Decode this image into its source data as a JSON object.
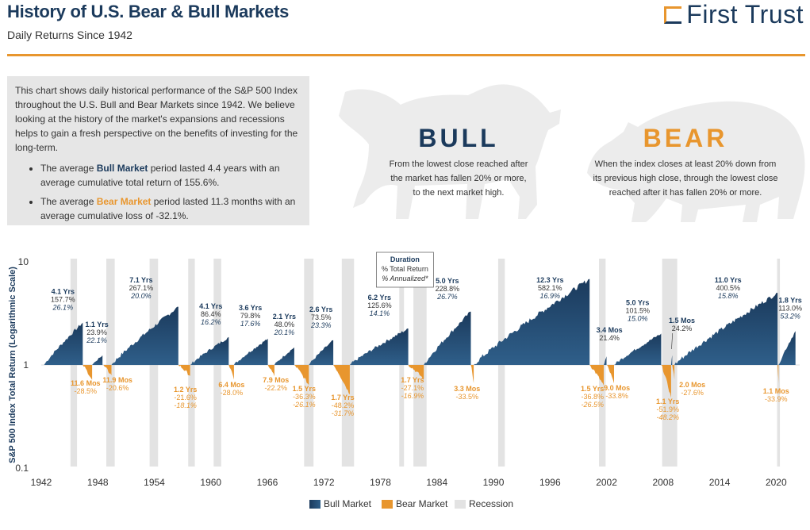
{
  "header": {
    "title": "History of U.S. Bear & Bull Markets",
    "subtitle": "Daily Returns Since 1942",
    "logo_text": "First Trust"
  },
  "intro": {
    "paragraph": "This chart shows daily historical performance of the S&P 500 Index throughout the U.S. Bull and Bear Markets since 1942. We believe looking at the history of the market's expansions and recessions helps to gain a fresh perspective on the benefits of investing for the long-term.",
    "bullets": [
      {
        "pre": "The average ",
        "term": "Bull Market",
        "post": " period lasted 4.4 years with an average cumulative total return of 155.6%."
      },
      {
        "pre": "The average ",
        "term": "Bear Market",
        "post": " period lasted 11.3 months with an average cumulative loss of -32.1%."
      }
    ]
  },
  "definitions": {
    "bull": {
      "title": "BULL",
      "text": [
        "From the lowest close reached after",
        "the market has fallen 20% or more,",
        "to the next market high."
      ]
    },
    "bear": {
      "title": "BEAR",
      "text": [
        "When the index closes at least 20% down from",
        "its previous high close, through the lowest close",
        "reached after it has fallen 20% or more."
      ]
    }
  },
  "colors": {
    "bull": "#1b3a5c",
    "bear": "#e8962e",
    "recession": "#e3e3e3"
  },
  "chart_data": {
    "type": "area",
    "ylabel": "S&P 500 Index Total Return (Logarithmic Scale)",
    "yscale": "log",
    "ylim": [
      0.1,
      10
    ],
    "yticks": [
      "10",
      "1",
      "0.1"
    ],
    "xlim": [
      1942,
      2022.5
    ],
    "xticks": [
      "1942",
      "1948",
      "1954",
      "1960",
      "1966",
      "1972",
      "1978",
      "1984",
      "1990",
      "1996",
      "2002",
      "2008",
      "2014",
      "2020"
    ],
    "duration_key": {
      "title": "Duration",
      "line1": "% Total Return",
      "line2": "% Annualized*"
    },
    "recessions": [
      [
        1945.1,
        1945.8
      ],
      [
        1948.9,
        1949.8
      ],
      [
        1953.5,
        1954.4
      ],
      [
        1957.6,
        1958.3
      ],
      [
        1960.3,
        1961.1
      ],
      [
        1969.9,
        1970.9
      ],
      [
        1973.9,
        1975.2
      ],
      [
        1980.0,
        1980.5
      ],
      [
        1981.5,
        1982.9
      ],
      [
        1990.5,
        1991.2
      ],
      [
        2001.2,
        2001.9
      ],
      [
        2007.9,
        2009.5
      ],
      [
        2020.1,
        2020.4
      ]
    ],
    "bull_markets": [
      {
        "start": 1942.3,
        "end": 1946.4,
        "peak": 2.577,
        "duration": "4.1 Yrs",
        "total": "157.7%",
        "annualized": "26.1%"
      },
      {
        "start": 1947.4,
        "end": 1948.5,
        "peak": 1.239,
        "duration": "1.1 Yrs",
        "total": "23.9%",
        "annualized": "22.1%"
      },
      {
        "start": 1949.45,
        "end": 1956.55,
        "peak": 3.671,
        "duration": "7.1 Yrs",
        "total": "267.1%",
        "annualized": "20.0%"
      },
      {
        "start": 1957.8,
        "end": 1961.9,
        "peak": 1.864,
        "duration": "4.1 Yrs",
        "total": "86.4%",
        "annualized": "16.2%"
      },
      {
        "start": 1962.45,
        "end": 1966.05,
        "peak": 1.798,
        "duration": "3.6 Yrs",
        "total": "79.8%",
        "annualized": "17.6%"
      },
      {
        "start": 1966.75,
        "end": 1968.85,
        "peak": 1.48,
        "duration": "2.1 Yrs",
        "total": "48.0%",
        "annualized": "20.1%"
      },
      {
        "start": 1970.4,
        "end": 1973.0,
        "peak": 1.735,
        "duration": "2.6 Yrs",
        "total": "73.5%",
        "annualized": "23.3%"
      },
      {
        "start": 1974.75,
        "end": 1980.95,
        "peak": 2.256,
        "duration": "6.2 Yrs",
        "total": "125.6%",
        "annualized": "14.1%"
      },
      {
        "start": 1982.6,
        "end": 1987.6,
        "peak": 3.288,
        "duration": "5.0 Yrs",
        "total": "228.8%",
        "annualized": "26.7%"
      },
      {
        "start": 1987.9,
        "end": 2000.2,
        "peak": 6.821,
        "duration": "12.3 Yrs",
        "total": "582.1%",
        "annualized": "16.9%"
      },
      {
        "start": 2001.7,
        "end": 2002.0,
        "peak": 1.214,
        "duration": "3.4 Mos",
        "total": "21.4%",
        "annualized": ""
      },
      {
        "start": 2002.8,
        "end": 2007.8,
        "peak": 2.015,
        "duration": "5.0 Yrs",
        "total": "101.5%",
        "annualized": "15.0%"
      },
      {
        "start": 2009.2,
        "end": 2020.15,
        "peak": 5.005,
        "duration": "11.0 Yrs",
        "total": "400.5%",
        "annualized": "15.8%"
      },
      {
        "start": 2020.25,
        "end": 2022.05,
        "peak": 2.13,
        "duration": "1.8 Yrs",
        "total": "113.0%",
        "annualized": "53.2%"
      }
    ],
    "short_bulls": [
      {
        "start": 2008.85,
        "end": 2008.97,
        "peak": 1.242,
        "duration": "1.5 Mos",
        "total": "24.2%",
        "annualized": ""
      }
    ],
    "bear_markets": [
      {
        "start": 1946.4,
        "end": 1947.4,
        "trough": 0.715,
        "duration": "11.6 Mos",
        "total": "-28.5%",
        "annualized": ""
      },
      {
        "start": 1948.5,
        "end": 1949.45,
        "trough": 0.794,
        "duration": "11.9 Mos",
        "total": "-20.6%",
        "annualized": ""
      },
      {
        "start": 1956.55,
        "end": 1957.8,
        "trough": 0.784,
        "duration": "1.2 Yrs",
        "total": "-21.6%",
        "annualized": "-18.1%"
      },
      {
        "start": 1961.9,
        "end": 1962.45,
        "trough": 0.72,
        "duration": "6.4 Mos",
        "total": "-28.0%",
        "annualized": ""
      },
      {
        "start": 1966.05,
        "end": 1966.75,
        "trough": 0.778,
        "duration": "7.9 Mos",
        "total": "-22.2%",
        "annualized": ""
      },
      {
        "start": 1968.85,
        "end": 1970.4,
        "trough": 0.637,
        "duration": "1.5 Yrs",
        "total": "-36.3%",
        "annualized": "-26.1%"
      },
      {
        "start": 1973.0,
        "end": 1974.75,
        "trough": 0.518,
        "duration": "1.7 Yrs",
        "total": "-48.2%",
        "annualized": "-31.7%"
      },
      {
        "start": 1980.95,
        "end": 1982.6,
        "trough": 0.729,
        "duration": "1.7 Yrs",
        "total": "-27.1%",
        "annualized": "-16.9%"
      },
      {
        "start": 1987.6,
        "end": 1987.9,
        "trough": 0.665,
        "duration": "3.3 Mos",
        "total": "-33.5%",
        "annualized": ""
      },
      {
        "start": 2000.2,
        "end": 2001.7,
        "trough": 0.632,
        "duration": "1.5 Yrs",
        "total": "-36.8%",
        "annualized": "-26.5%"
      },
      {
        "start": 2002.0,
        "end": 2002.8,
        "trough": 0.662,
        "duration": "9.0 Mos",
        "total": "-33.8%",
        "annualized": ""
      },
      {
        "start": 2007.8,
        "end": 2008.85,
        "trough": 0.481,
        "duration": "1.1 Yrs",
        "total": "-51.9%",
        "annualized": "-48.2%"
      },
      {
        "start": 2008.97,
        "end": 2009.2,
        "trough": 0.724,
        "duration": "2.0 Mos",
        "total": "-27.6%",
        "annualized": ""
      },
      {
        "start": 2020.15,
        "end": 2020.25,
        "trough": 0.661,
        "duration": "1.1 Mos",
        "total": "-33.9%",
        "annualized": ""
      }
    ]
  },
  "legend": {
    "bull": "Bull Market",
    "bear": "Bear Market",
    "recession": "Recession"
  }
}
